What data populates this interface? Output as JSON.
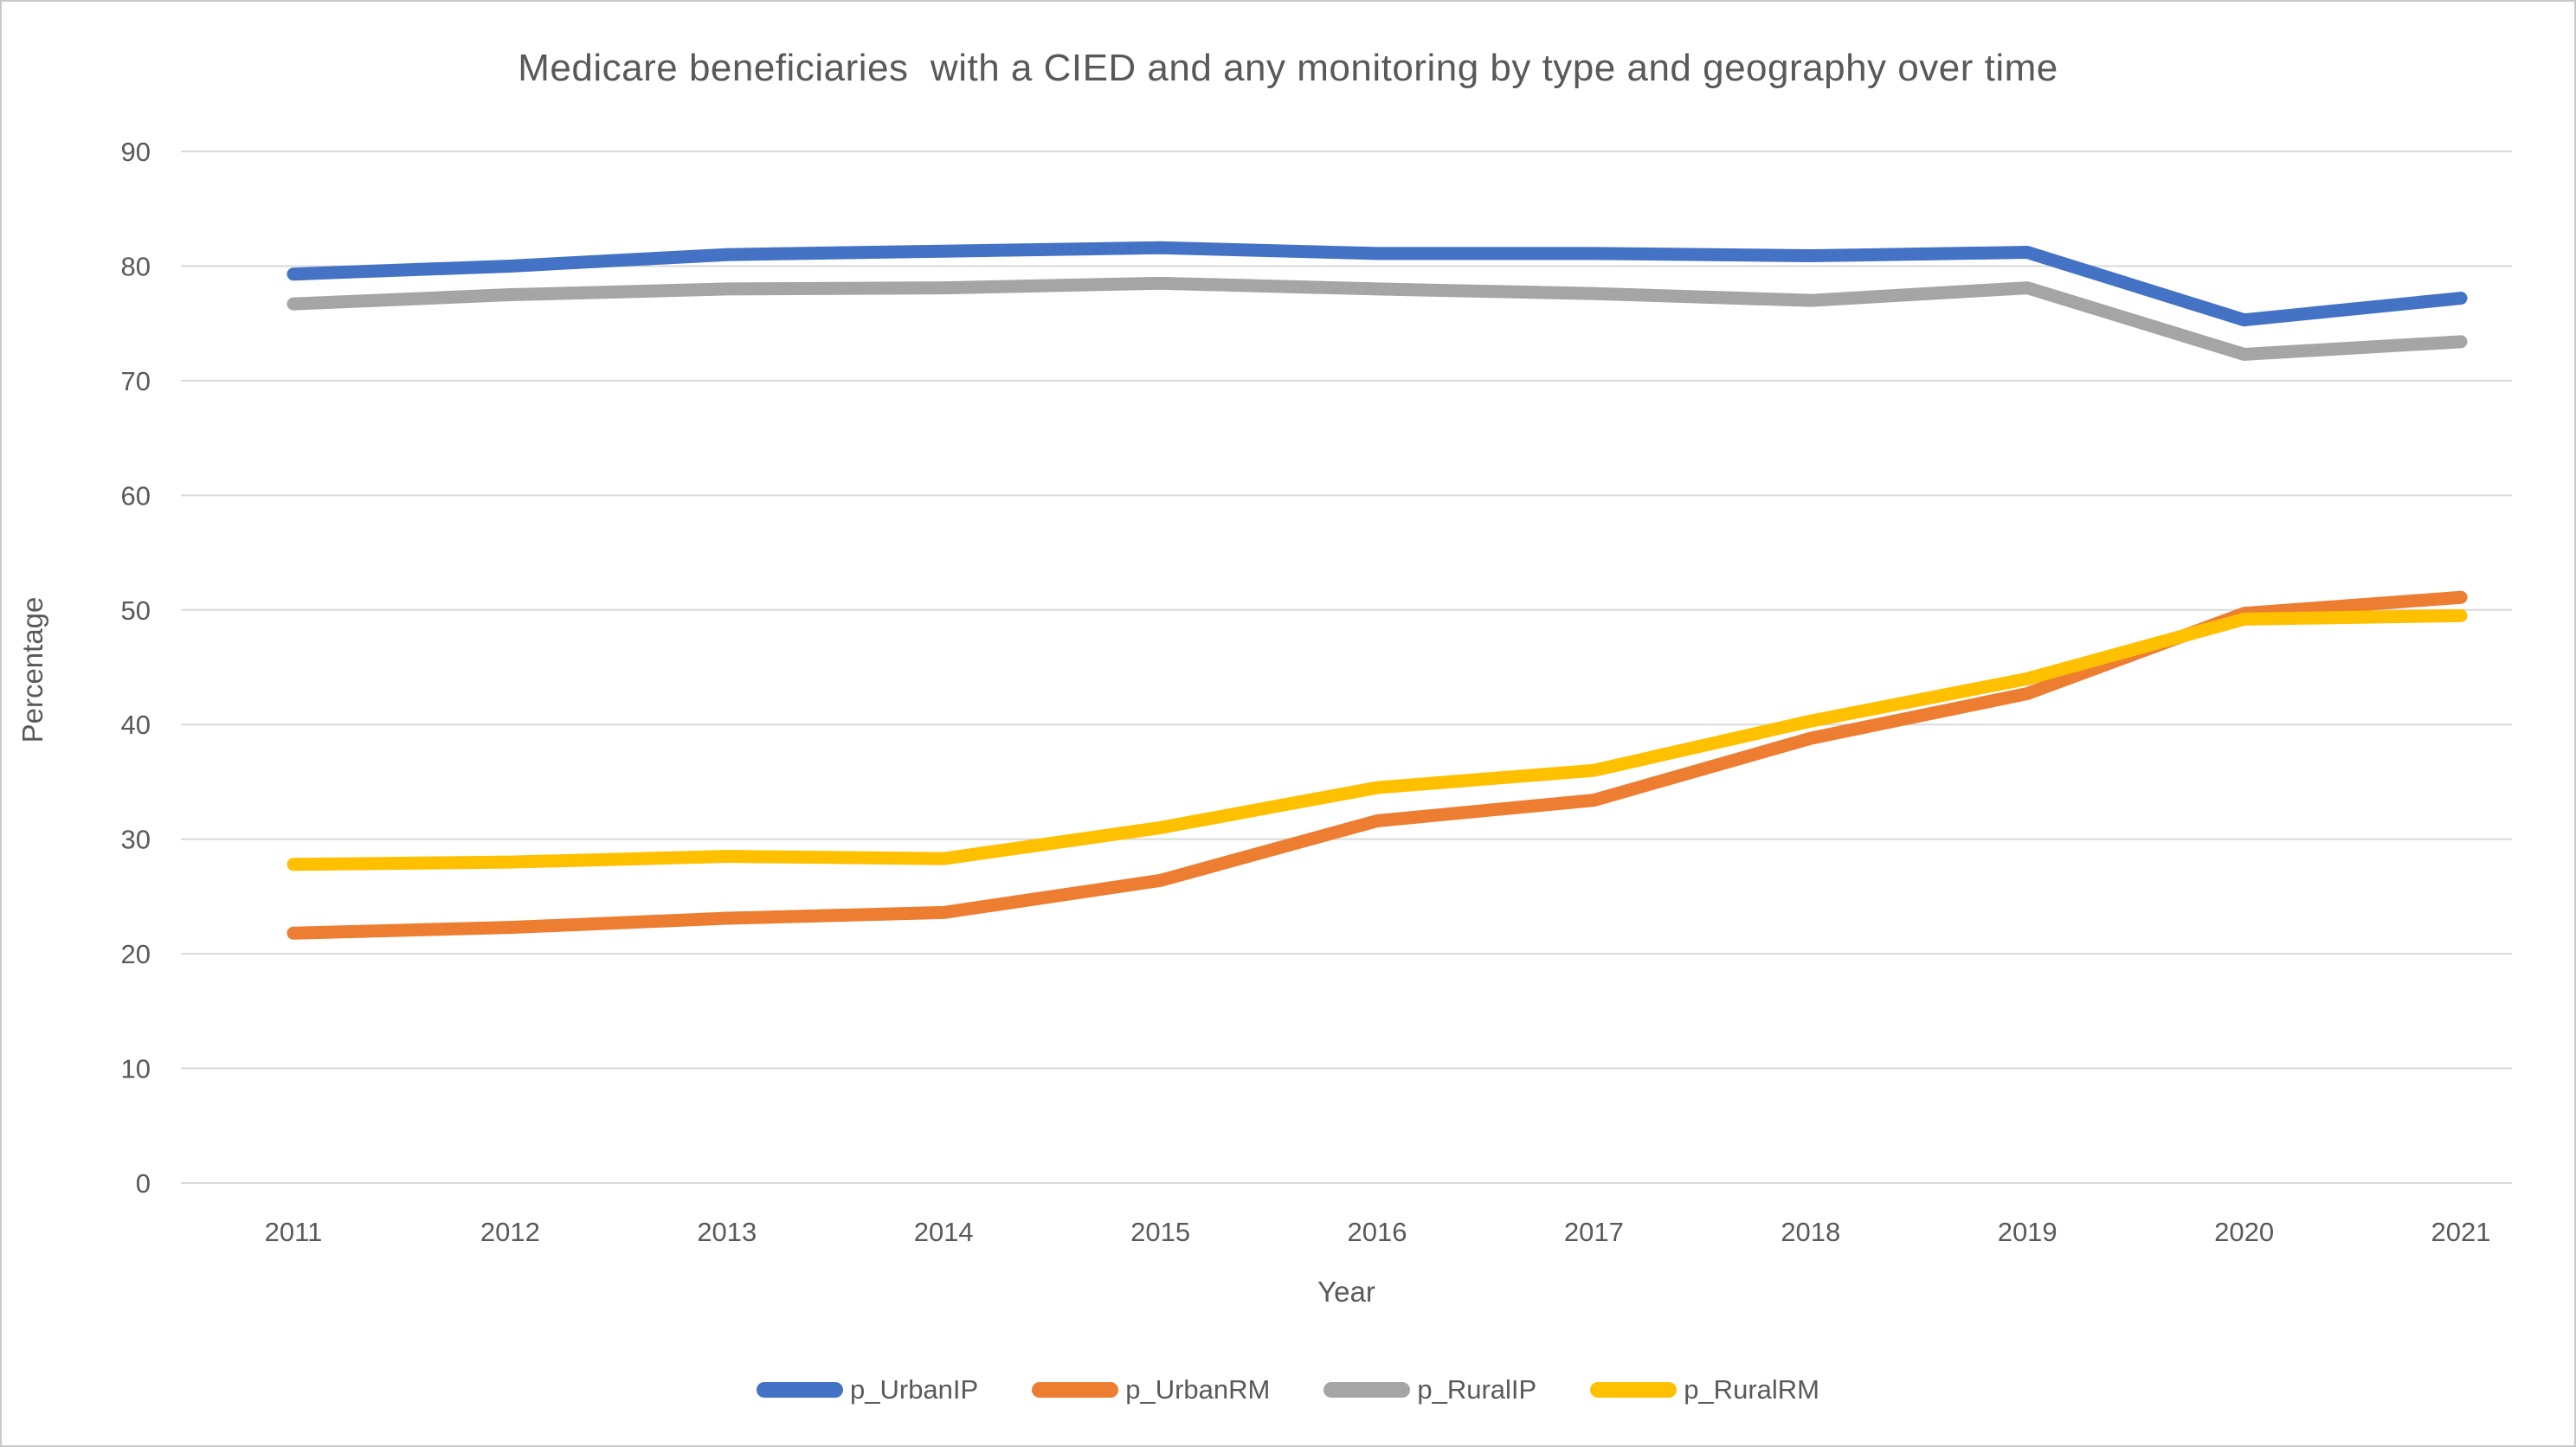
{
  "chart_data": {
    "type": "line",
    "title": "Medicare beneficiaries  with a CIED and any monitoring by type and geography over time",
    "xlabel": "Year",
    "ylabel": "Percentage",
    "x": [
      "2011",
      "2012",
      "2013",
      "2014",
      "2015",
      "2016",
      "2017",
      "2018",
      "2019",
      "2020",
      "2021"
    ],
    "series": [
      {
        "name": "p_UrbanIP",
        "color": "#4472C4",
        "values": [
          79.3,
          80.0,
          81.0,
          81.3,
          81.6,
          81.1,
          81.1,
          80.9,
          81.2,
          75.3,
          77.2
        ]
      },
      {
        "name": "p_UrbanRM",
        "color": "#ED7D31",
        "values": [
          21.8,
          22.3,
          23.1,
          23.6,
          26.4,
          31.6,
          33.4,
          38.8,
          42.7,
          49.7,
          51.1
        ]
      },
      {
        "name": "p_RuralIP",
        "color": "#A5A5A5",
        "values": [
          76.7,
          77.5,
          78.0,
          78.1,
          78.5,
          78.0,
          77.6,
          77.0,
          78.1,
          72.3,
          73.4
        ]
      },
      {
        "name": "p_RuralRM",
        "color": "#FFC000",
        "values": [
          27.8,
          28.0,
          28.5,
          28.3,
          31.0,
          34.5,
          36.0,
          40.3,
          44.0,
          49.2,
          49.5
        ]
      }
    ],
    "ylim": [
      0,
      90
    ],
    "ytick_step": 10,
    "grid": true,
    "legend_position": "bottom-center",
    "gridline_color": "#D9D9D9",
    "text_color": "#595959"
  }
}
